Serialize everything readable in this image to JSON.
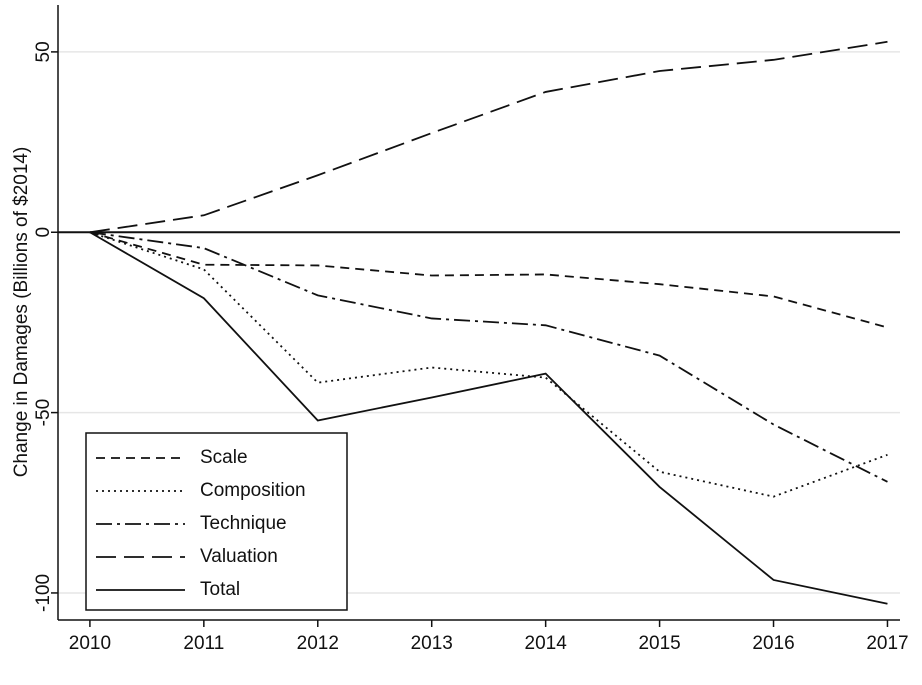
{
  "chart_data": {
    "type": "line",
    "y_label": "Change in Damages (Billions of $2014)",
    "x": [
      2010,
      2011,
      2012,
      2013,
      2014,
      2015,
      2016,
      2017
    ],
    "xlim": [
      2009.72,
      2017.11
    ],
    "xticks": [
      2010,
      2011,
      2012,
      2013,
      2014,
      2015,
      2016,
      2017
    ],
    "ylim": [
      -107.5,
      63
    ],
    "yticks": [
      50,
      0,
      -50,
      -100
    ],
    "grid": true,
    "reference_line": 0,
    "legend_position": "lower-left",
    "series": [
      {
        "name": "Scale",
        "color": "#111111",
        "dash": "9,6",
        "values": [
          0,
          -9,
          -9.2,
          -12,
          -11.7,
          -14.4,
          -17.8,
          -26.4
        ]
      },
      {
        "name": "Composition",
        "color": "#111111",
        "dash": "2,4",
        "values": [
          0,
          -10.3,
          -41.7,
          -37.5,
          -40.3,
          -66.4,
          -73.3,
          -61.7
        ]
      },
      {
        "name": "Technique",
        "color": "#111111",
        "dash": "16,5,3,5",
        "values": [
          0,
          -4.4,
          -17.5,
          -23.9,
          -25.8,
          -34.2,
          -53.3,
          -69.2
        ]
      },
      {
        "name": "Valuation",
        "color": "#111111",
        "dash": "20,8",
        "values": [
          0,
          4.7,
          15.8,
          27.5,
          38.9,
          44.7,
          47.8,
          52.8
        ]
      },
      {
        "name": "Total",
        "color": "#111111",
        "dash": "none",
        "values": [
          0,
          -18.3,
          -52.2,
          -45.8,
          -39.2,
          -70.6,
          -96.4,
          -103
        ]
      }
    ]
  }
}
